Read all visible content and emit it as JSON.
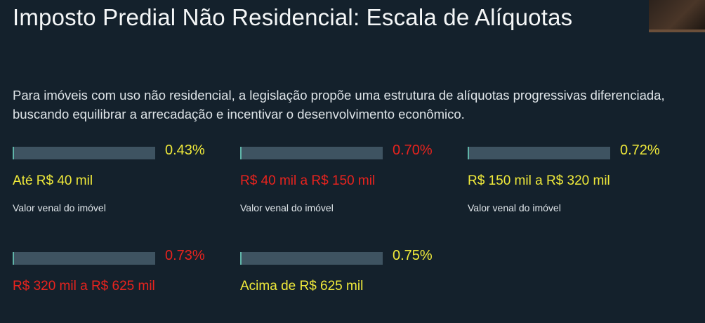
{
  "page": {
    "title": "Imposto Predial Não Residencial: Escala de Alíquotas",
    "description": "Para imóveis com uso não residencial, a legislação propõe uma estrutura de alíquotas progressivas diferenciada, buscando equilibrar a arrecadação e incentivar o desenvolvimento econômico."
  },
  "colors": {
    "yellow": "#f0ea3a",
    "red": "#e8231e"
  },
  "brackets": [
    {
      "rate": "0.43%",
      "range": "Até R$ 40 mil",
      "caption": "Valor venal do imóvel",
      "color": "#f0ea3a"
    },
    {
      "rate": "0.70%",
      "range": "R$ 40 mil a R$ 150 mil",
      "caption": "Valor venal do imóvel",
      "color": "#e8231e"
    },
    {
      "rate": "0.72%",
      "range": "R$ 150 mil a R$ 320 mil",
      "caption": "Valor venal do imóvel",
      "color": "#f0ea3a"
    },
    {
      "rate": "0.73%",
      "range": "R$ 320 mil a R$ 625 mil",
      "caption": "",
      "color": "#e8231e"
    },
    {
      "rate": "0.75%",
      "range": "Acima de R$ 625 mil",
      "caption": "",
      "color": "#f0ea3a"
    }
  ]
}
